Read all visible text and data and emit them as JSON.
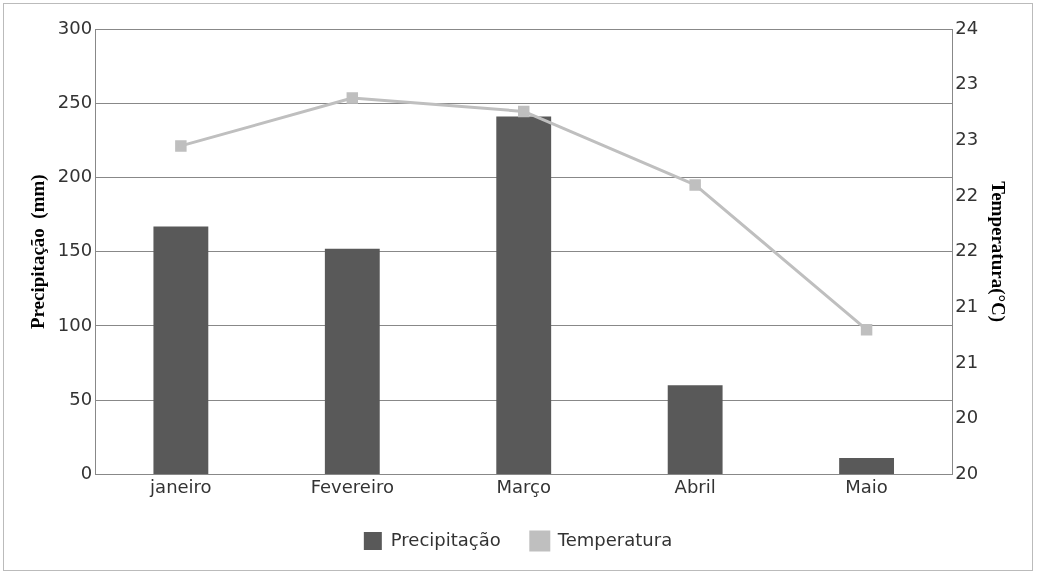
{
  "chart_data": {
    "type": "bar",
    "categories": [
      "janeiro",
      "Fevereiro",
      "Março",
      "Abril",
      "Maio"
    ],
    "series": [
      {
        "name": "Precipitação",
        "color": "#595959",
        "values": [
          167,
          152,
          241,
          60,
          11
        ]
      },
      {
        "name": "Temperatura",
        "type": "line",
        "axis": "y2",
        "color": "#bfbfbf",
        "values": [
          22.95,
          23.38,
          23.26,
          22.6,
          21.3
        ]
      }
    ],
    "ylabel": "Precipitação  (mm)",
    "y2label": "Temperatura(°C)",
    "ylim": [
      0,
      300
    ],
    "yticks": [
      0,
      50,
      100,
      150,
      200,
      250,
      300
    ],
    "y2lim": [
      20,
      24
    ],
    "y2ticks": [
      {
        "value": 20,
        "label": "20"
      },
      {
        "value": 20.5,
        "label": "20"
      },
      {
        "value": 21,
        "label": "21"
      },
      {
        "value": 21.5,
        "label": "21"
      },
      {
        "value": 22,
        "label": "22"
      },
      {
        "value": 22.5,
        "label": "22"
      },
      {
        "value": 23,
        "label": "23"
      },
      {
        "value": 23.5,
        "label": "23"
      },
      {
        "value": 24,
        "label": "24"
      }
    ],
    "grid": "y",
    "legend": "bottom",
    "marker": "square",
    "line_style": "solid"
  }
}
